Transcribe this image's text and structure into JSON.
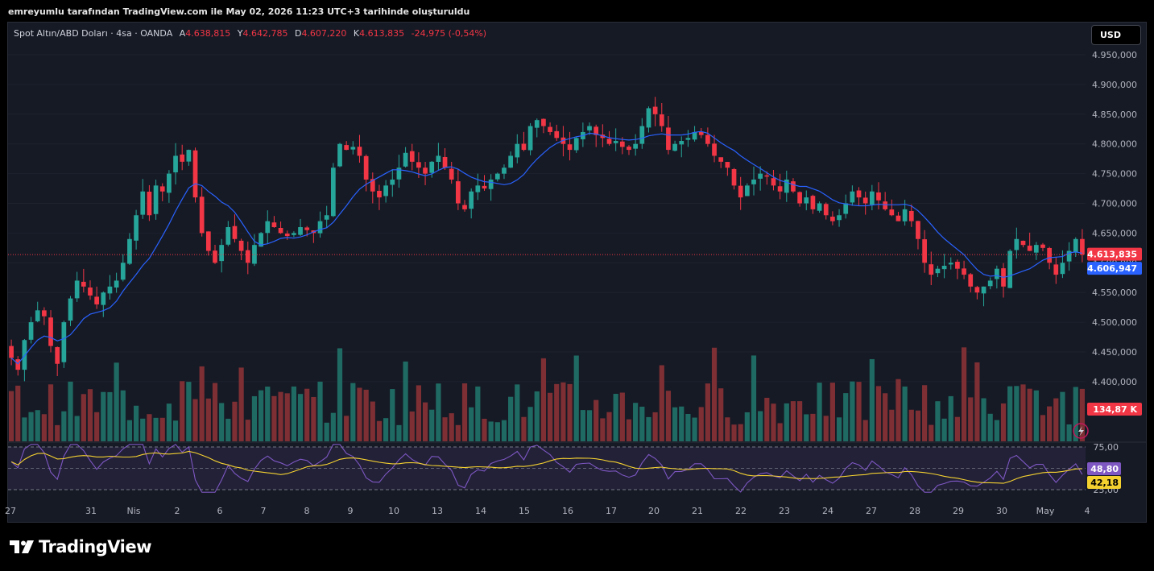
{
  "caption": "emreyumlu tarafından TradingView.com ile May 02, 2026 11:23 UTC+3 tarihinde oluşturuldu",
  "legend": {
    "symbol": "Spot Altın/ABD Doları · 4sa · OANDA",
    "open_key": "A",
    "open": "4.638,815",
    "high_key": "Y",
    "high": "4.642,785",
    "low_key": "D",
    "low": "4.607,220",
    "close_key": "K",
    "close": "4.613,835",
    "change": "-24,975 (-0,54%)"
  },
  "currency_button": "USD",
  "brand": "TradingView",
  "colors": {
    "up": "#26a69a",
    "down": "#f23645",
    "ma": "#2962ff",
    "rsi": "#7e57c2",
    "rsi_ma": "#f5d130",
    "background": "#161a25"
  },
  "price_axis": {
    "ticks": [
      "4.950,000",
      "4.900,000",
      "4.850,000",
      "4.800,000",
      "4.750,000",
      "4.700,000",
      "4.650,000",
      "4.600,000",
      "4.550,000",
      "4.500,000",
      "4.450,000",
      "4.400,000"
    ],
    "last_price_label": "4.613,835",
    "ma_label": "4.606,947",
    "volume_label": "134,87 K"
  },
  "rsi_axis": {
    "ticks": [
      "75,00",
      "25,00"
    ],
    "rsi_label": "48,80",
    "rsi_ma_label": "42,18"
  },
  "x_axis": {
    "labels": [
      "27",
      "31",
      "Nis",
      "2",
      "6",
      "7",
      "8",
      "9",
      "10",
      "13",
      "14",
      "15",
      "16",
      "17",
      "20",
      "21",
      "22",
      "23",
      "24",
      "27",
      "28",
      "29",
      "30",
      "May",
      "4"
    ]
  },
  "chart_data": {
    "type": "candlestick",
    "symbol": "Spot Altın/ABD Doları",
    "interval": "4sa",
    "ylim": [
      4400000,
      4970000
    ],
    "last_close": 4613835,
    "moving_average_last": 4606947,
    "volume_last": "134,87 K",
    "rsi_last": 48.8,
    "rsi_ma_last": 42.18,
    "rsi_levels": [
      75,
      25
    ],
    "candles_close": [
      4440000,
      4420000,
      4470000,
      4500000,
      4520000,
      4510000,
      4460000,
      4430000,
      4500000,
      4540000,
      4570000,
      4560000,
      4545000,
      4530000,
      4550000,
      4560000,
      4570000,
      4600000,
      4640000,
      4680000,
      4720000,
      4680000,
      4730000,
      4720000,
      4750000,
      4780000,
      4770000,
      4790000,
      4710000,
      4650000,
      4620000,
      4600000,
      4630000,
      4660000,
      4640000,
      4620000,
      4600000,
      4630000,
      4650000,
      4670000,
      4660000,
      4650000,
      4645000,
      4650000,
      4660000,
      4655000,
      4650000,
      4670000,
      4680000,
      4760000,
      4800000,
      4790000,
      4795000,
      4780000,
      4740000,
      4720000,
      4710000,
      4730000,
      4740000,
      4760000,
      4785000,
      4770000,
      4760000,
      4750000,
      4770000,
      4780000,
      4760000,
      4740000,
      4700000,
      4690000,
      4720000,
      4730000,
      4725000,
      4740000,
      4750000,
      4760000,
      4780000,
      4800000,
      4790000,
      4830000,
      4840000,
      4830000,
      4820000,
      4810000,
      4800000,
      4790000,
      4810000,
      4820000,
      4830000,
      4815000,
      4810000,
      4800000,
      4805000,
      4795000,
      4790000,
      4800000,
      4830000,
      4860000,
      4850000,
      4830000,
      4790000,
      4800000,
      4805000,
      4810000,
      4820000,
      4815000,
      4800000,
      4780000,
      4770000,
      4760000,
      4730000,
      4710000,
      4730000,
      4740000,
      4750000,
      4745000,
      4730000,
      4720000,
      4740000,
      4720000,
      4700000,
      4710000,
      4690000,
      4700000,
      4680000,
      4670000,
      4680000,
      4700000,
      4720000,
      4710000,
      4700000,
      4720000,
      4705000,
      4690000,
      4680000,
      4670000,
      4690000,
      4670000,
      4640000,
      4600000,
      4580000,
      4590000,
      4595000,
      4600000,
      4590000,
      4580000,
      4560000,
      4550000,
      4560000,
      4570000,
      4590000,
      4560000,
      4620000,
      4640000,
      4630000,
      4620000,
      4630000,
      4625000,
      4600000,
      4580000,
      4600000,
      4620000,
      4640000,
      4613835
    ],
    "rsi_ma_series": "smoothed"
  }
}
